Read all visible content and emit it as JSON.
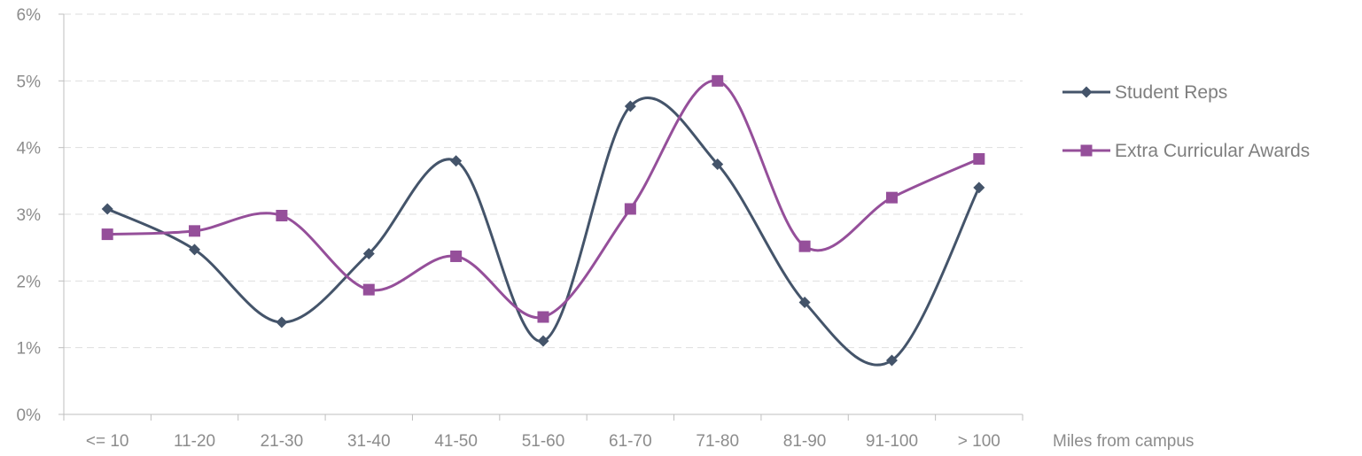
{
  "chart_data": {
    "type": "line",
    "title": "",
    "xlabel": "Miles from campus",
    "ylabel": "",
    "categories": [
      "<= 10",
      "11-20",
      "21-30",
      "31-40",
      "41-50",
      "51-60",
      "61-70",
      "71-80",
      "81-90",
      "91-100",
      "> 100"
    ],
    "y_ticks": [
      "0%",
      "1%",
      "2%",
      "3%",
      "4%",
      "5%",
      "6%"
    ],
    "ylim": [
      0,
      6
    ],
    "y_unit": "%",
    "grid": true,
    "smooth": true,
    "legend_position": "right",
    "series": [
      {
        "name": "Student Reps",
        "color": "#44546a",
        "marker": "diamond",
        "values": [
          3.08,
          2.47,
          1.38,
          2.41,
          3.8,
          1.1,
          4.62,
          3.75,
          1.68,
          0.81,
          3.4
        ]
      },
      {
        "name": "Extra Curricular Awards",
        "color": "#954f9a",
        "marker": "square",
        "values": [
          2.7,
          2.75,
          2.98,
          1.87,
          2.37,
          1.46,
          3.08,
          5.0,
          2.52,
          3.25,
          3.83
        ]
      }
    ]
  }
}
